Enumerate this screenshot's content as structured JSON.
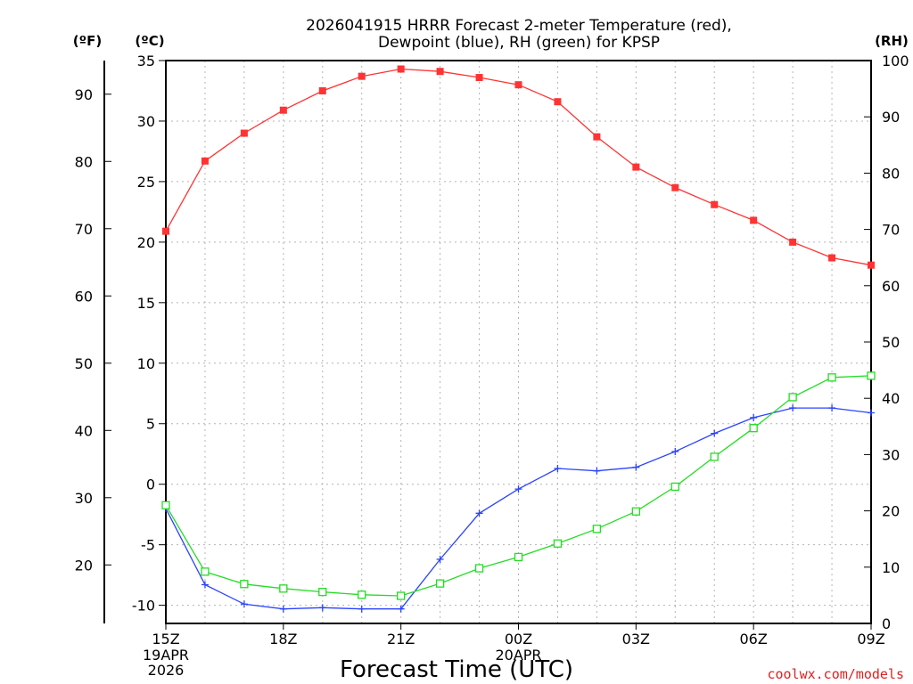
{
  "chart_data": {
    "type": "line",
    "title_line1": "2026041915 HRRR Forecast 2-meter Temperature (red),",
    "title_line2": "Dewpoint (blue), RH (green) for KPSP",
    "xlabel": "Forecast Time (UTC)",
    "credit": "coolwx.com/models",
    "units": {
      "fahrenheit": "(ºF)",
      "celsius": "(ºC)",
      "rh": "(RH)"
    },
    "x_hours": [
      0,
      1,
      2,
      3,
      4,
      5,
      6,
      7,
      8,
      9,
      10,
      11,
      12,
      13,
      14,
      15,
      16,
      17,
      18
    ],
    "x_ticks": [
      {
        "hour": 0,
        "label": "15Z",
        "date": "19APR",
        "year": "2026"
      },
      {
        "hour": 3,
        "label": "18Z"
      },
      {
        "hour": 6,
        "label": "21Z"
      },
      {
        "hour": 9,
        "label": "00Z",
        "date": "20APR"
      },
      {
        "hour": 12,
        "label": "03Z"
      },
      {
        "hour": 15,
        "label": "06Z"
      },
      {
        "hour": 18,
        "label": "09Z"
      }
    ],
    "celsius_axis": {
      "range": [
        -11.5,
        35
      ],
      "ticks": [
        -10,
        -5,
        0,
        5,
        10,
        15,
        20,
        25,
        30,
        35
      ]
    },
    "fahrenheit_ticks": [
      20,
      30,
      40,
      50,
      60,
      70,
      80,
      90
    ],
    "rh_axis": {
      "range": [
        0,
        100
      ],
      "ticks": [
        0,
        10,
        20,
        30,
        40,
        50,
        60,
        70,
        80,
        90,
        100
      ]
    },
    "series": [
      {
        "name": "Temperature",
        "unit": "C",
        "color": "#ff3333",
        "marker": "filled-square",
        "values": [
          20.9,
          26.7,
          29.0,
          30.9,
          32.5,
          33.7,
          34.3,
          34.1,
          33.6,
          33.0,
          31.6,
          28.7,
          26.2,
          24.5,
          23.1,
          21.8,
          20.0,
          18.7,
          18.1
        ]
      },
      {
        "name": "Dewpoint",
        "unit": "C",
        "color": "#2b44ff",
        "marker": "plus",
        "values": [
          -2.0,
          -8.3,
          -9.9,
          -10.3,
          -10.2,
          -10.3,
          -10.3,
          -6.2,
          -2.4,
          -0.4,
          1.3,
          1.1,
          1.4,
          2.7,
          4.2,
          5.5,
          6.3,
          6.3,
          5.9
        ]
      },
      {
        "name": "Relative Humidity",
        "unit": "%",
        "color": "#22dd22",
        "marker": "open-square",
        "values": [
          21.0,
          9.2,
          7.0,
          6.2,
          5.6,
          5.1,
          4.9,
          7.1,
          9.8,
          11.8,
          14.2,
          16.8,
          19.9,
          24.3,
          29.6,
          34.7,
          40.2,
          43.7,
          44.0
        ]
      }
    ]
  }
}
